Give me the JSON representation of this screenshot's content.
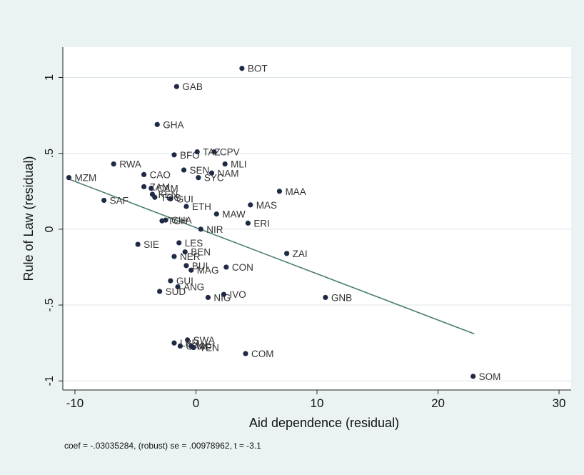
{
  "chart_data": {
    "type": "scatter",
    "title": "",
    "xlabel": "Aid dependence (residual)",
    "ylabel": "Rule of Law (residual)",
    "xlim": [
      -11,
      31
    ],
    "ylim": [
      -1.06,
      1.2
    ],
    "xticks": [
      -10,
      0,
      10,
      20,
      30
    ],
    "yticks": [
      -1,
      -0.5,
      0,
      0.5,
      1
    ],
    "xtick_labels": [
      "-10",
      "0",
      "10",
      "20",
      "30"
    ],
    "ytick_labels": [
      "-1",
      "-.5",
      "0",
      ".5",
      "1"
    ],
    "grid": true,
    "legend": "none",
    "note": "coef = -.03035284, (robust) se = .00978962, t = -3.1",
    "fit_line": {
      "x": [
        -10.5,
        23
      ],
      "y": [
        0.33,
        -0.69
      ]
    },
    "points": [
      {
        "label": "BOT",
        "x": 3.8,
        "y": 1.06
      },
      {
        "label": "GAB",
        "x": -1.6,
        "y": 0.94
      },
      {
        "label": "GHA",
        "x": -3.2,
        "y": 0.69
      },
      {
        "label": "BFO",
        "x": -1.8,
        "y": 0.49
      },
      {
        "label": "CPV",
        "x": 1.5,
        "y": 0.51
      },
      {
        "label": "TAZ",
        "x": 0.1,
        "y": 0.51
      },
      {
        "label": "RWA",
        "x": -6.8,
        "y": 0.43
      },
      {
        "label": "MLI",
        "x": 2.4,
        "y": 0.43
      },
      {
        "label": "SEN",
        "x": -1.0,
        "y": 0.39
      },
      {
        "label": "NAM",
        "x": 1.3,
        "y": 0.37
      },
      {
        "label": "CAO",
        "x": -4.3,
        "y": 0.36
      },
      {
        "label": "SYC",
        "x": 0.2,
        "y": 0.34
      },
      {
        "label": "MZM",
        "x": -10.5,
        "y": 0.34
      },
      {
        "label": "ZAM",
        "x": -4.3,
        "y": 0.28
      },
      {
        "label": "CAM",
        "x": -3.7,
        "y": 0.27
      },
      {
        "label": "MAA",
        "x": 6.9,
        "y": 0.25
      },
      {
        "label": "KEN",
        "x": -3.6,
        "y": 0.23
      },
      {
        "label": "TOG",
        "x": -3.4,
        "y": 0.21
      },
      {
        "label": "GUI",
        "x": -2.1,
        "y": 0.2
      },
      {
        "label": "SAF",
        "x": -7.6,
        "y": 0.19
      },
      {
        "label": "MAS",
        "x": 4.5,
        "y": 0.16
      },
      {
        "label": "ETH",
        "x": -0.8,
        "y": 0.15
      },
      {
        "label": "MAW",
        "x": 1.7,
        "y": 0.1
      },
      {
        "label": "CHA",
        "x": -2.5,
        "y": 0.06
      },
      {
        "label": "TCH",
        "x": -2.8,
        "y": 0.055
      },
      {
        "label": "ERI",
        "x": 4.3,
        "y": 0.04
      },
      {
        "label": "NIR",
        "x": 0.4,
        "y": 0.0
      },
      {
        "label": "SIE",
        "x": -4.8,
        "y": -0.1
      },
      {
        "label": "LES",
        "x": -1.4,
        "y": -0.09
      },
      {
        "label": "BEN",
        "x": -0.9,
        "y": -0.15
      },
      {
        "label": "ZAI",
        "x": 7.5,
        "y": -0.16
      },
      {
        "label": "NER",
        "x": -1.8,
        "y": -0.18
      },
      {
        "label": "BUI",
        "x": -0.8,
        "y": -0.24
      },
      {
        "label": "CON",
        "x": 2.5,
        "y": -0.25
      },
      {
        "label": "MAG",
        "x": -0.4,
        "y": -0.27
      },
      {
        "label": "GUI",
        "x": -2.1,
        "y": -0.34
      },
      {
        "label": "ANG",
        "x": -1.5,
        "y": -0.38
      },
      {
        "label": "SUD",
        "x": -3.0,
        "y": -0.41
      },
      {
        "label": "NIG",
        "x": 1.0,
        "y": -0.45
      },
      {
        "label": "IVO",
        "x": 2.3,
        "y": -0.43
      },
      {
        "label": "GNB",
        "x": 10.7,
        "y": -0.45
      },
      {
        "label": "SWA",
        "x": -0.7,
        "y": -0.73
      },
      {
        "label": "LBR",
        "x": -1.8,
        "y": -0.75
      },
      {
        "label": "GAM",
        "x": -1.3,
        "y": -0.77
      },
      {
        "label": "MDI",
        "x": -0.4,
        "y": -0.77
      },
      {
        "label": "YEN",
        "x": -0.2,
        "y": -0.78
      },
      {
        "label": "COM",
        "x": 4.1,
        "y": -0.82
      },
      {
        "label": "SOM",
        "x": 22.9,
        "y": -0.97
      }
    ]
  }
}
